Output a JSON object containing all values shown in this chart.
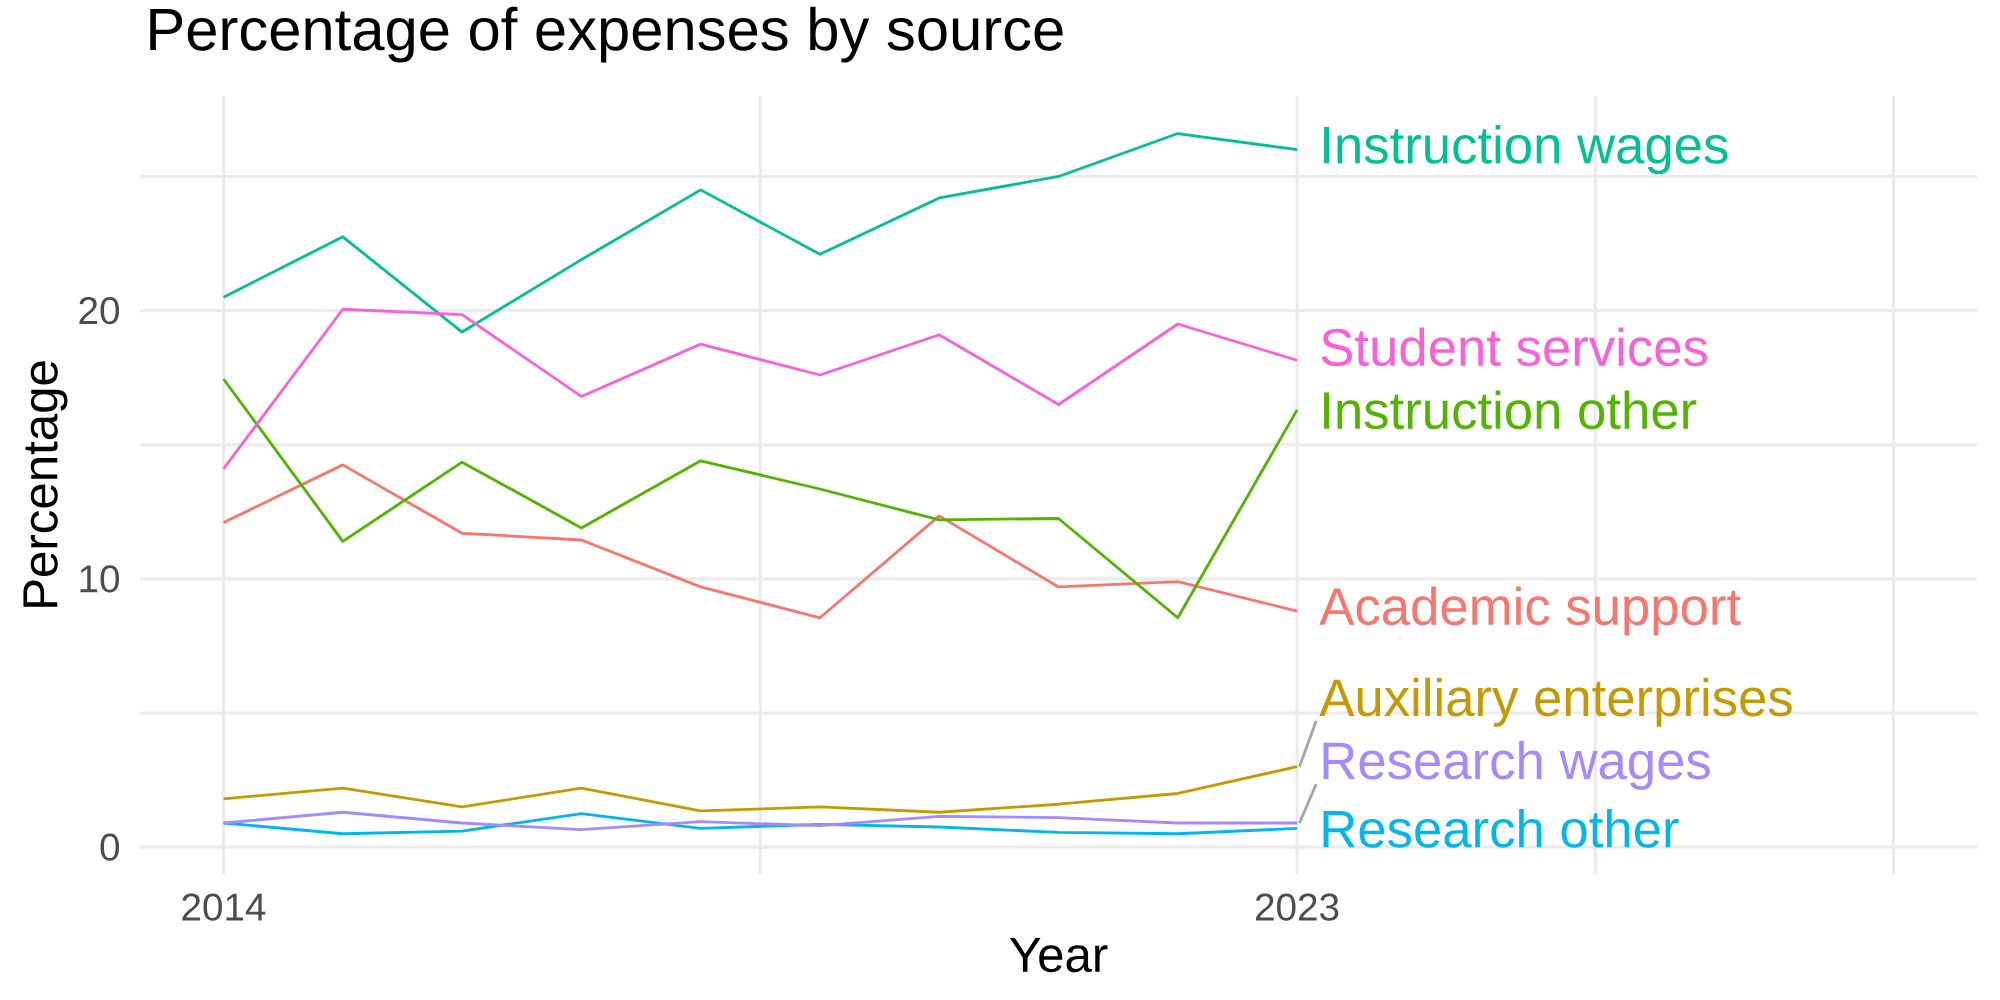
{
  "chart_data": {
    "type": "line",
    "title": "Percentage of expenses by source",
    "xlabel": "Year",
    "ylabel": "Percentage",
    "x": [
      2014,
      2015,
      2016,
      2017,
      2018,
      2019,
      2020,
      2021,
      2022,
      2023
    ],
    "xlim": [
      2013.3,
      2028.7
    ],
    "xticks": [
      2014,
      {
        "value": 2018.5,
        "label": null
      },
      2023,
      {
        "value": 2025.5,
        "label": null
      },
      {
        "value": 2028,
        "label": null
      }
    ],
    "ylim": [
      -1,
      28
    ],
    "yticks": [
      0,
      {
        "value": 5,
        "label": null
      },
      10,
      {
        "value": 15,
        "label": null
      },
      20,
      {
        "value": 25,
        "label": null
      }
    ],
    "grid": true,
    "series": [
      {
        "name": "Academic support",
        "color": "#F8766D",
        "values": [
          12.1,
          14.25,
          11.7,
          11.45,
          9.7,
          8.55,
          12.35,
          9.7,
          9.9,
          8.8
        ]
      },
      {
        "name": "Auxiliary enterprises",
        "color": "#C49A00",
        "values": [
          1.8,
          2.2,
          1.5,
          2.2,
          1.35,
          1.5,
          1.3,
          1.6,
          2.0,
          3.0
        ]
      },
      {
        "name": "Instruction other",
        "color": "#53B400",
        "values": [
          17.45,
          11.4,
          14.35,
          11.9,
          14.4,
          13.35,
          12.2,
          12.25,
          8.55,
          16.3
        ]
      },
      {
        "name": "Instruction wages",
        "color": "#00C094",
        "values": [
          20.5,
          22.75,
          19.2,
          21.9,
          24.5,
          22.1,
          24.2,
          25.0,
          26.6,
          26.0
        ]
      },
      {
        "name": "Research other",
        "color": "#00B6EB",
        "values": [
          0.9,
          0.5,
          0.6,
          1.25,
          0.7,
          0.85,
          0.75,
          0.55,
          0.5,
          0.7
        ]
      },
      {
        "name": "Research wages",
        "color": "#A58AFF",
        "values": [
          0.9,
          1.3,
          0.9,
          0.65,
          0.95,
          0.8,
          1.15,
          1.1,
          0.9,
          0.9
        ]
      },
      {
        "name": "Student services",
        "color": "#FB61D7",
        "values": [
          14.1,
          20.05,
          19.85,
          16.8,
          18.75,
          17.6,
          19.1,
          16.5,
          19.5,
          18.15
        ]
      }
    ]
  }
}
